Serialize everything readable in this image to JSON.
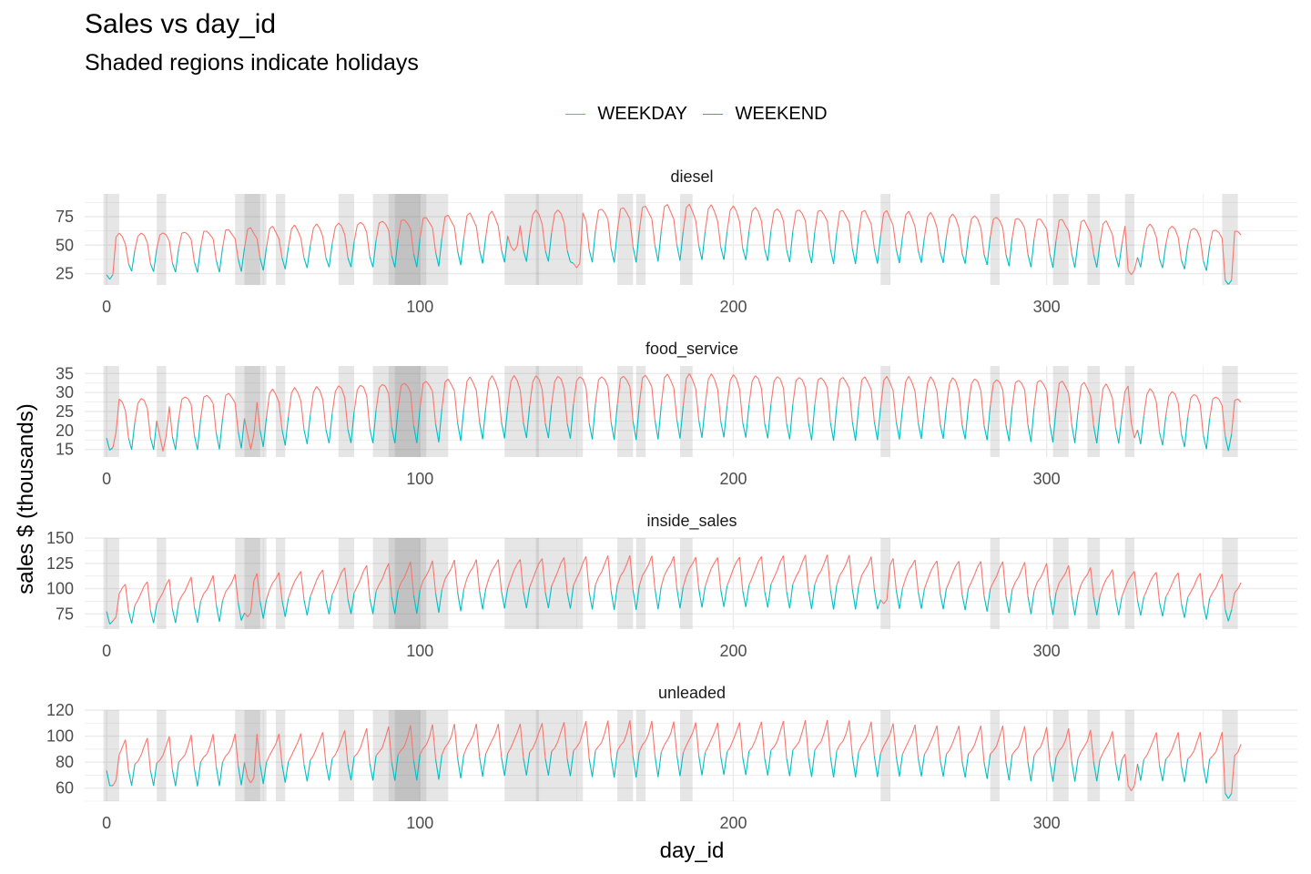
{
  "chart_data": {
    "type": "line",
    "title": "Sales vs day_id",
    "subtitle": "Shaded regions indicate holidays",
    "xlabel": "day_id",
    "ylabel": "sales $ (thousands)",
    "xlim": [
      -7,
      380
    ],
    "x_ticks": [
      0,
      100,
      200,
      300
    ],
    "legend": {
      "position": "top",
      "entries": [
        {
          "name": "WEEKDAY",
          "color": "#F8766D"
        },
        {
          "name": "WEEKEND",
          "color": "#00BFC4"
        }
      ]
    },
    "grid": true,
    "weekend_days_of_week": [
      0,
      1
    ],
    "last_day": 362,
    "holiday_ranges": [
      [
        -1,
        4
      ],
      [
        16,
        19
      ],
      [
        41,
        49
      ],
      [
        44,
        48
      ],
      [
        48,
        51
      ],
      [
        54,
        57
      ],
      [
        74,
        79
      ],
      [
        85,
        109
      ],
      [
        90,
        102
      ],
      [
        92,
        100
      ],
      [
        127,
        138
      ],
      [
        137,
        149
      ],
      [
        149,
        152
      ],
      [
        163,
        168
      ],
      [
        169,
        172
      ],
      [
        183,
        187
      ],
      [
        247,
        250
      ],
      [
        282,
        285
      ],
      [
        302,
        307
      ],
      [
        313,
        317
      ],
      [
        325,
        328
      ],
      [
        356,
        361
      ]
    ],
    "panels": [
      {
        "name": "diesel",
        "ylim": [
          15,
          95
        ],
        "yticks": [
          25,
          50,
          75
        ],
        "weekday_profile": [
          52,
          68,
          70,
          66,
          60
        ],
        "weekend_profile": [
          40,
          30
        ],
        "base_level": [
          [
            0,
            0.85
          ],
          [
            60,
            0.95
          ],
          [
            120,
            1.12
          ],
          [
            180,
            1.22
          ],
          [
            240,
            1.15
          ],
          [
            300,
            1.05
          ],
          [
            362,
            0.9
          ]
        ],
        "dips": [
          [
            1,
            20
          ],
          [
            130,
            45
          ],
          [
            150,
            30
          ],
          [
            327,
            24
          ],
          [
            358,
            15
          ]
        ]
      },
      {
        "name": "food_service",
        "ylim": [
          13,
          37
        ],
        "yticks": [
          15,
          20,
          25,
          30,
          35
        ],
        "weekday_profile": [
          24,
          30,
          31,
          30,
          28
        ],
        "weekend_profile": [
          20,
          16
        ],
        "base_level": [
          [
            0,
            0.9
          ],
          [
            60,
            1.0
          ],
          [
            120,
            1.1
          ],
          [
            180,
            1.12
          ],
          [
            240,
            1.1
          ],
          [
            300,
            1.08
          ],
          [
            362,
            0.92
          ]
        ],
        "dips": [
          [
            2,
            15.5
          ],
          [
            18,
            14.5
          ],
          [
            46,
            15
          ],
          [
            328,
            18
          ],
          [
            358,
            15
          ]
        ]
      },
      {
        "name": "inside_sales",
        "ylim": [
          60,
          150
        ],
        "yticks": [
          75,
          100,
          125,
          150
        ],
        "weekday_profile": [
          92,
          100,
          106,
          112,
          118
        ],
        "weekend_profile": [
          88,
          72
        ],
        "base_level": [
          [
            0,
            0.88
          ],
          [
            60,
            1.0
          ],
          [
            120,
            1.1
          ],
          [
            180,
            1.12
          ],
          [
            240,
            1.12
          ],
          [
            300,
            1.05
          ],
          [
            362,
            0.95
          ]
        ],
        "dips": [
          [
            2,
            68
          ],
          [
            45,
            72
          ],
          [
            248,
            85
          ],
          [
            358,
            75
          ]
        ]
      },
      {
        "name": "unleaded",
        "ylim": [
          50,
          120
        ],
        "yticks": [
          60,
          80,
          100,
          120
        ],
        "weekday_profile": [
          84,
          88,
          92,
          98,
          106
        ],
        "weekend_profile": [
          80,
          66
        ],
        "base_level": [
          [
            0,
            0.92
          ],
          [
            60,
            0.97
          ],
          [
            120,
            1.04
          ],
          [
            180,
            1.05
          ],
          [
            240,
            1.05
          ],
          [
            300,
            1.0
          ],
          [
            362,
            0.96
          ]
        ],
        "dips": [
          [
            2,
            62
          ],
          [
            46,
            64
          ],
          [
            327,
            58
          ],
          [
            358,
            52
          ]
        ]
      }
    ]
  }
}
